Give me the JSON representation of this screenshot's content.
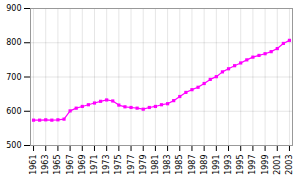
{
  "chart_data": {
    "type": "line",
    "x": [
      1961,
      1962,
      1963,
      1964,
      1965,
      1966,
      1967,
      1968,
      1969,
      1970,
      1971,
      1972,
      1973,
      1974,
      1975,
      1976,
      1977,
      1978,
      1979,
      1980,
      1981,
      1982,
      1983,
      1984,
      1985,
      1986,
      1987,
      1988,
      1989,
      1990,
      1991,
      1992,
      1993,
      1994,
      1995,
      1996,
      1997,
      1998,
      1999,
      2000,
      2001,
      2002,
      2003
    ],
    "values": [
      574,
      574,
      575,
      574,
      575,
      577,
      601,
      609,
      614,
      619,
      624,
      629,
      633,
      630,
      618,
      613,
      611,
      609,
      606,
      611,
      614,
      619,
      622,
      631,
      643,
      655,
      663,
      670,
      681,
      693,
      701,
      715,
      724,
      733,
      741,
      750,
      758,
      763,
      768,
      774,
      783,
      798,
      807
    ],
    "color": "#ff00ff",
    "marker": "square",
    "xlim": [
      1960.5,
      2003.5
    ],
    "xticks": [
      1961,
      1963,
      1965,
      1967,
      1969,
      1971,
      1973,
      1975,
      1977,
      1979,
      1981,
      1983,
      1985,
      1987,
      1989,
      1991,
      1993,
      1995,
      1997,
      1999,
      2001,
      2003
    ],
    "ylim": [
      500,
      900
    ],
    "yticks": [
      500,
      600,
      700,
      800,
      900
    ],
    "grid": true
  }
}
